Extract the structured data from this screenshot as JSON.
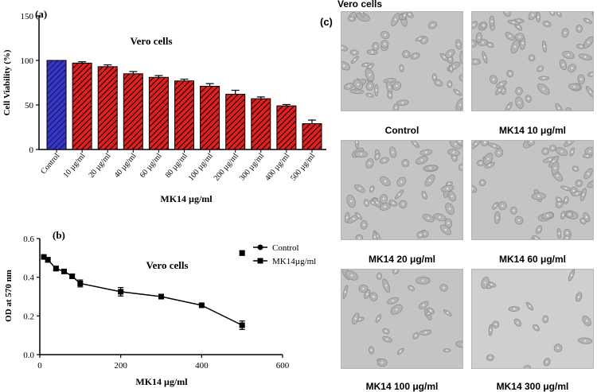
{
  "chart_data": [
    {
      "panel": "(a)",
      "type": "bar",
      "title": "Vero cells",
      "xlabel": "MK14 µg/ml",
      "ylabel": "Cell Viability (%)",
      "ylim": [
        0,
        150
      ],
      "yticks": [
        0,
        50,
        100,
        150
      ],
      "categories": [
        "Control",
        "10 µg/ml",
        "20 µg/ml",
        "40 µg/ml",
        "60 µg/ml",
        "80 µg/ml",
        "100 µg/ml",
        "200 µg/ml",
        "300 µg/ml",
        "400 µg/ml",
        "500 µg/ml"
      ],
      "values": [
        100,
        97,
        93,
        85,
        81,
        77,
        71,
        62,
        57,
        49,
        29
      ],
      "errors": [
        0,
        1.5,
        2,
        2.5,
        2,
        2,
        3,
        4.5,
        2,
        1.5,
        4
      ],
      "colors": {
        "control": "#3535c8",
        "treated": "#e02020",
        "hatch": "#000000"
      }
    },
    {
      "panel": "(b)",
      "type": "line",
      "title": "Vero cells",
      "xlabel": "MK14 µg/ml",
      "ylabel": "OD at 570 nm",
      "xlim": [
        0,
        600
      ],
      "ylim": [
        0,
        0.6
      ],
      "xticks": [
        0,
        200,
        400,
        600
      ],
      "yticks": [
        0.0,
        0.2,
        0.4,
        0.6
      ],
      "legend_position": "top-right",
      "series": [
        {
          "name": "Control",
          "marker": "circle",
          "x": [],
          "y": [],
          "err": []
        },
        {
          "name": "MK14µg/ml",
          "marker": "square",
          "x": [
            10,
            20,
            40,
            60,
            80,
            100,
            200,
            300,
            400,
            500
          ],
          "y": [
            0.505,
            0.49,
            0.445,
            0.43,
            0.405,
            0.368,
            0.325,
            0.3,
            0.255,
            0.152
          ],
          "err": [
            0.006,
            0.012,
            0.012,
            0.01,
            0.01,
            0.018,
            0.022,
            0.012,
            0.006,
            0.022
          ]
        }
      ],
      "standalone_point": {
        "x": 500,
        "y": 0.525,
        "err": 0.012
      }
    }
  ],
  "micrographs": {
    "panel": "(c)",
    "title": "Vero cells",
    "images": [
      {
        "label": "Control",
        "density": "high"
      },
      {
        "label": "MK14 10 μg/ml",
        "density": "high"
      },
      {
        "label": "MK14 20 μg/ml",
        "density": "high"
      },
      {
        "label": "MK14 60 μg/ml",
        "density": "high"
      },
      {
        "label": "MK14 100 μg/ml",
        "density": "medium"
      },
      {
        "label": "MK14 300 μg/ml",
        "density": "low"
      }
    ]
  }
}
